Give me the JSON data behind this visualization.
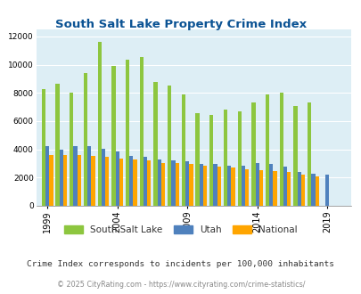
{
  "title": "South Salt Lake Property Crime Index",
  "years": [
    1999,
    2000,
    2001,
    2002,
    2003,
    2004,
    2005,
    2006,
    2007,
    2008,
    2009,
    2010,
    2011,
    2012,
    2013,
    2014,
    2015,
    2016,
    2017,
    2018,
    2019,
    2020
  ],
  "ssl": [
    8300,
    8650,
    8000,
    9400,
    11600,
    9900,
    10350,
    10550,
    8800,
    8500,
    7900,
    6550,
    6450,
    6800,
    6700,
    7300,
    7900,
    8000,
    7100,
    7300,
    0,
    0
  ],
  "utah": [
    4250,
    4000,
    4250,
    4250,
    4050,
    3850,
    3550,
    3450,
    3300,
    3250,
    3150,
    2950,
    2950,
    2850,
    2850,
    3000,
    2950,
    2800,
    2400,
    2300,
    2200,
    0
  ],
  "national": [
    3600,
    3600,
    3600,
    3550,
    3450,
    3350,
    3300,
    3200,
    3050,
    3000,
    2950,
    2850,
    2800,
    2700,
    2600,
    2550,
    2450,
    2400,
    2200,
    2100,
    0,
    0
  ],
  "ssl_color": "#8dc63f",
  "utah_color": "#4f81bd",
  "national_color": "#ffa500",
  "bg_color": "#ddeef5",
  "title_color": "#0b5394",
  "ylim": [
    0,
    12500
  ],
  "yticks": [
    0,
    2000,
    4000,
    6000,
    8000,
    10000,
    12000
  ],
  "xlabel_years": [
    1999,
    2004,
    2009,
    2014,
    2019
  ],
  "legend_labels": [
    "South Salt Lake",
    "Utah",
    "National"
  ],
  "footnote1": "Crime Index corresponds to incidents per 100,000 inhabitants",
  "footnote2": "© 2025 CityRating.com - https://www.cityrating.com/crime-statistics/",
  "footnote1_color": "#333333",
  "footnote2_color": "#888888"
}
